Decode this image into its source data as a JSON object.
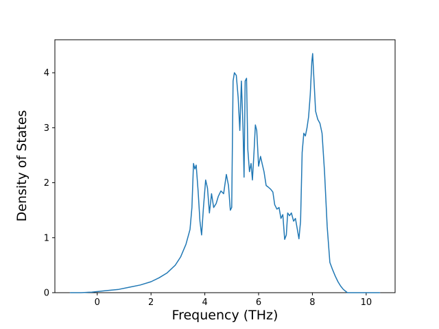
{
  "figure": {
    "background": "#ffffff"
  },
  "chart_data": {
    "type": "line",
    "title": "",
    "xlabel": "Frequency (THz)",
    "ylabel": "Density of States",
    "xlim": [
      -1.575,
      11.075
    ],
    "ylim": [
      0,
      4.6
    ],
    "xticks": [
      0,
      2,
      4,
      6,
      8,
      10
    ],
    "yticks": [
      0,
      1,
      2,
      3,
      4
    ],
    "grid": false,
    "legend": "none",
    "line_color": "#1f77b4",
    "axis_color": "#000000",
    "series": [
      {
        "name": "Density of States",
        "points": [
          [
            -1.0,
            0.0
          ],
          [
            -0.6,
            0.0
          ],
          [
            -0.2,
            0.01
          ],
          [
            0.0,
            0.02
          ],
          [
            0.4,
            0.04
          ],
          [
            0.8,
            0.06
          ],
          [
            1.2,
            0.1
          ],
          [
            1.6,
            0.14
          ],
          [
            2.0,
            0.2
          ],
          [
            2.3,
            0.27
          ],
          [
            2.6,
            0.36
          ],
          [
            2.9,
            0.5
          ],
          [
            3.1,
            0.65
          ],
          [
            3.3,
            0.88
          ],
          [
            3.45,
            1.15
          ],
          [
            3.52,
            1.55
          ],
          [
            3.58,
            2.35
          ],
          [
            3.63,
            2.25
          ],
          [
            3.68,
            2.32
          ],
          [
            3.75,
            1.85
          ],
          [
            3.82,
            1.3
          ],
          [
            3.88,
            1.05
          ],
          [
            3.95,
            1.55
          ],
          [
            4.03,
            2.05
          ],
          [
            4.1,
            1.9
          ],
          [
            4.17,
            1.45
          ],
          [
            4.25,
            1.8
          ],
          [
            4.33,
            1.55
          ],
          [
            4.42,
            1.62
          ],
          [
            4.5,
            1.75
          ],
          [
            4.6,
            1.85
          ],
          [
            4.7,
            1.8
          ],
          [
            4.8,
            2.15
          ],
          [
            4.88,
            1.95
          ],
          [
            4.95,
            1.5
          ],
          [
            5.0,
            1.55
          ],
          [
            5.05,
            3.85
          ],
          [
            5.1,
            4.0
          ],
          [
            5.17,
            3.95
          ],
          [
            5.24,
            3.55
          ],
          [
            5.3,
            2.95
          ],
          [
            5.36,
            3.85
          ],
          [
            5.42,
            3.0
          ],
          [
            5.46,
            2.1
          ],
          [
            5.5,
            3.85
          ],
          [
            5.55,
            3.9
          ],
          [
            5.6,
            2.6
          ],
          [
            5.66,
            2.2
          ],
          [
            5.72,
            2.35
          ],
          [
            5.77,
            2.05
          ],
          [
            5.83,
            2.55
          ],
          [
            5.88,
            3.05
          ],
          [
            5.93,
            2.95
          ],
          [
            6.0,
            2.3
          ],
          [
            6.07,
            2.48
          ],
          [
            6.13,
            2.35
          ],
          [
            6.2,
            2.2
          ],
          [
            6.28,
            1.95
          ],
          [
            6.36,
            1.92
          ],
          [
            6.45,
            1.88
          ],
          [
            6.53,
            1.83
          ],
          [
            6.6,
            1.6
          ],
          [
            6.68,
            1.52
          ],
          [
            6.76,
            1.55
          ],
          [
            6.83,
            1.35
          ],
          [
            6.9,
            1.42
          ],
          [
            6.97,
            0.97
          ],
          [
            7.03,
            1.05
          ],
          [
            7.08,
            1.45
          ],
          [
            7.15,
            1.4
          ],
          [
            7.22,
            1.45
          ],
          [
            7.3,
            1.3
          ],
          [
            7.37,
            1.35
          ],
          [
            7.44,
            1.15
          ],
          [
            7.5,
            0.98
          ],
          [
            7.56,
            1.3
          ],
          [
            7.62,
            2.55
          ],
          [
            7.68,
            2.9
          ],
          [
            7.74,
            2.85
          ],
          [
            7.8,
            3.0
          ],
          [
            7.86,
            3.2
          ],
          [
            7.92,
            3.6
          ],
          [
            7.98,
            4.2
          ],
          [
            8.01,
            4.35
          ],
          [
            8.06,
            3.85
          ],
          [
            8.12,
            3.3
          ],
          [
            8.2,
            3.15
          ],
          [
            8.28,
            3.08
          ],
          [
            8.36,
            2.9
          ],
          [
            8.45,
            2.2
          ],
          [
            8.55,
            1.2
          ],
          [
            8.65,
            0.55
          ],
          [
            8.75,
            0.42
          ],
          [
            8.85,
            0.3
          ],
          [
            8.95,
            0.2
          ],
          [
            9.05,
            0.12
          ],
          [
            9.15,
            0.06
          ],
          [
            9.3,
            0.0
          ],
          [
            9.6,
            0.0
          ],
          [
            10.0,
            0.0
          ],
          [
            10.5,
            0.0
          ]
        ]
      }
    ]
  }
}
